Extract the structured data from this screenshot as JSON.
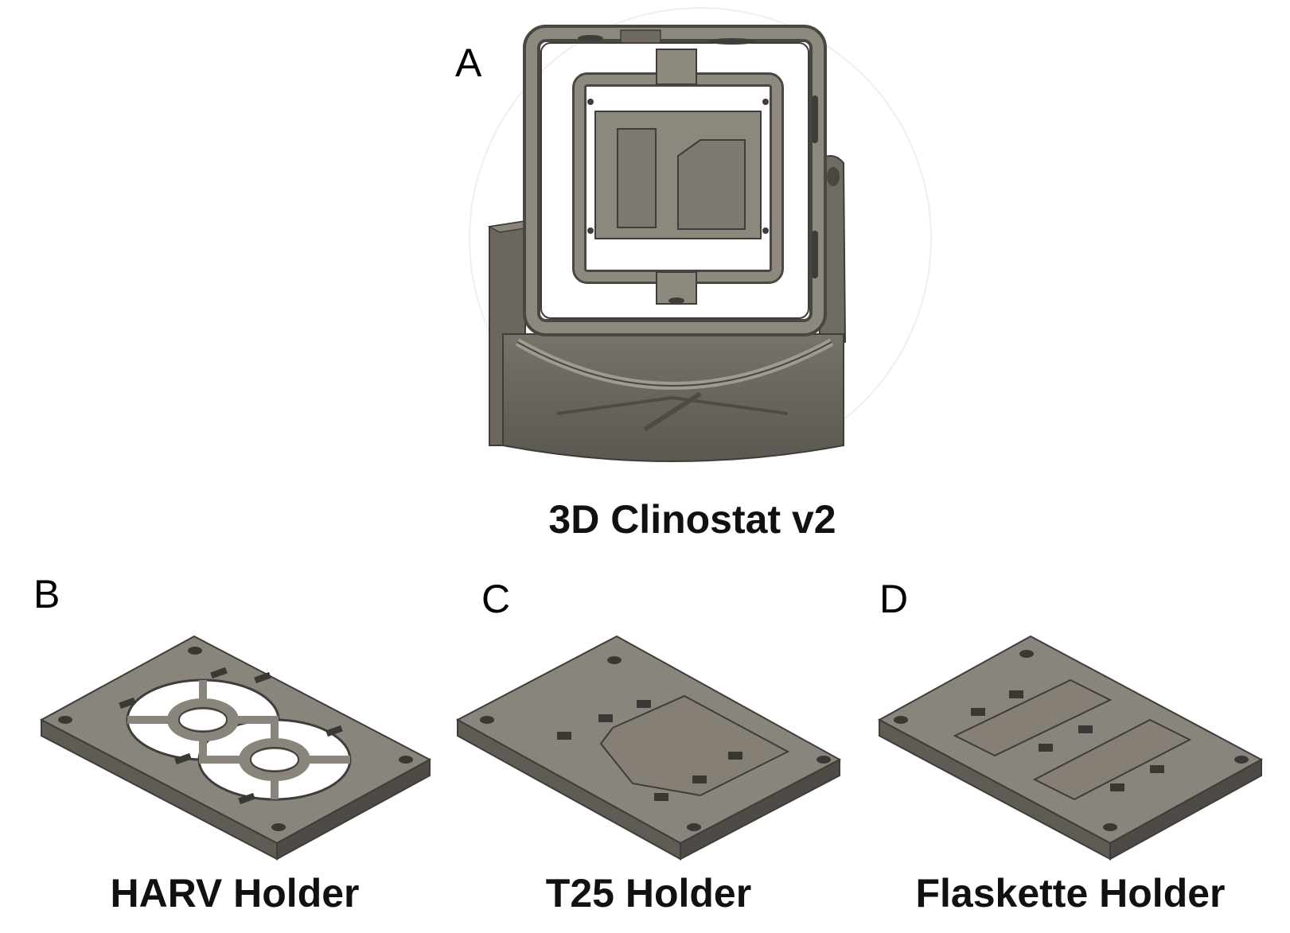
{
  "panels": [
    {
      "letter": "A",
      "caption": "3D Clinostat v2"
    },
    {
      "letter": "B",
      "caption": "HARV Holder"
    },
    {
      "letter": "C",
      "caption": "T25 Holder"
    },
    {
      "letter": "D",
      "caption": "Flaskette Holder"
    }
  ],
  "colors": {
    "plate_top": "#8a857c",
    "plate_side": "#5f5b55",
    "plate_edge": "#4a4743",
    "hole": "#3a3835",
    "background": "#ffffff"
  }
}
